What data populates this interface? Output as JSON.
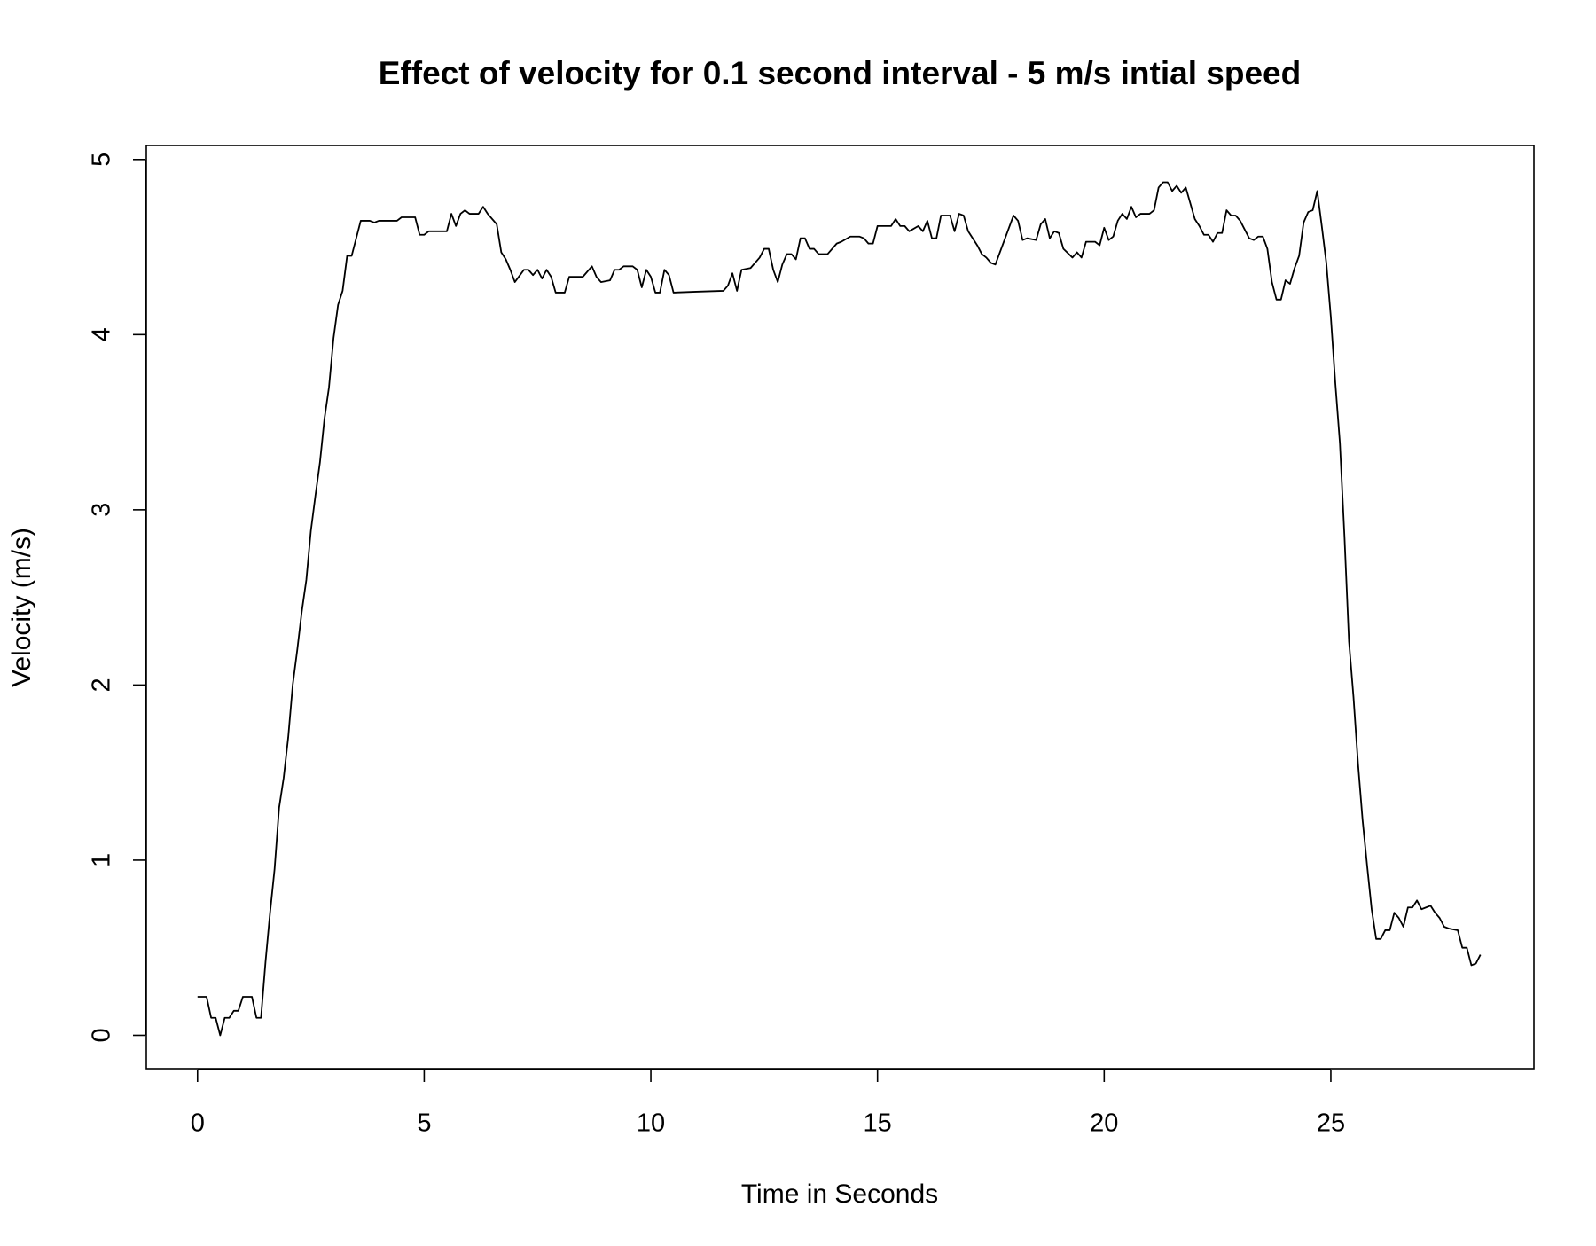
{
  "chart_data": {
    "type": "line",
    "title": "Effect of velocity for 0.1 second interval - 5 m/s intial speed",
    "x_label": "Time in Seconds",
    "y_label": "Velocity (m/s)",
    "color": "#000000",
    "grid": false,
    "xlim": [
      -1.13,
      29.48
    ],
    "ylim": [
      -0.19,
      5.08
    ],
    "xticks": [
      0,
      5,
      10,
      15,
      20,
      25
    ],
    "yticks": [
      0,
      1,
      2,
      3,
      4,
      5
    ],
    "x": [
      0,
      0.2,
      0.3,
      0.4,
      0.5,
      0.6,
      0.7,
      0.8,
      0.9,
      1.0,
      1.2,
      1.3,
      1.4,
      1.5,
      1.6,
      1.7,
      1.8,
      1.9,
      2.0,
      2.1,
      2.2,
      2.3,
      2.4,
      2.5,
      2.6,
      2.7,
      2.8,
      2.9,
      3.0,
      3.1,
      3.2,
      3.3,
      3.4,
      3.5,
      3.6,
      3.8,
      3.9,
      4.0,
      4.4,
      4.5,
      4.8,
      4.9,
      5.0,
      5.1,
      5.5,
      5.6,
      5.7,
      5.8,
      5.9,
      6.0,
      6.2,
      6.3,
      6.4,
      6.6,
      6.7,
      6.8,
      6.9,
      7.0,
      7.2,
      7.3,
      7.4,
      7.5,
      7.6,
      7.7,
      7.8,
      7.9,
      8.1,
      8.2,
      8.5,
      8.7,
      8.8,
      8.9,
      9.1,
      9.2,
      9.3,
      9.4,
      9.6,
      9.7,
      9.8,
      9.9,
      10.0,
      10.1,
      10.2,
      10.3,
      10.4,
      10.5,
      11.0,
      11.6,
      11.7,
      11.8,
      11.9,
      12.0,
      12.2,
      12.4,
      12.5,
      12.6,
      12.7,
      12.8,
      12.9,
      13.0,
      13.1,
      13.2,
      13.3,
      13.4,
      13.5,
      13.6,
      13.7,
      13.9,
      14.1,
      14.2,
      14.4,
      14.6,
      14.7,
      14.8,
      14.9,
      15.0,
      15.3,
      15.4,
      15.5,
      15.6,
      15.7,
      15.9,
      16.0,
      16.1,
      16.2,
      16.3,
      16.4,
      16.6,
      16.7,
      16.8,
      16.9,
      17.0,
      17.2,
      17.3,
      17.4,
      17.5,
      17.6,
      17.8,
      18.0,
      18.1,
      18.2,
      18.3,
      18.5,
      18.6,
      18.7,
      18.8,
      18.9,
      19.0,
      19.1,
      19.3,
      19.4,
      19.5,
      19.6,
      19.8,
      19.9,
      20.0,
      20.1,
      20.2,
      20.3,
      20.4,
      20.5,
      20.6,
      20.7,
      20.8,
      21.0,
      21.1,
      21.2,
      21.3,
      21.4,
      21.5,
      21.6,
      21.7,
      21.8,
      22.0,
      22.1,
      22.2,
      22.3,
      22.4,
      22.5,
      22.6,
      22.7,
      22.8,
      22.9,
      23.0,
      23.1,
      23.2,
      23.3,
      23.4,
      23.5,
      23.6,
      23.7,
      23.8,
      23.9,
      24.0,
      24.1,
      24.2,
      24.3,
      24.4,
      24.5,
      24.6,
      24.7,
      24.8,
      24.9,
      25.0,
      25.1,
      25.2,
      25.3,
      25.4,
      25.5,
      25.6,
      25.7,
      25.8,
      25.9,
      26.0,
      26.1,
      26.2,
      26.3,
      26.4,
      26.5,
      26.6,
      26.7,
      26.8,
      26.9,
      27.0,
      27.1,
      27.2,
      27.3,
      27.4,
      27.5,
      27.6,
      27.8,
      27.9,
      28.0,
      28.1,
      28.2,
      28.3
    ],
    "values": [
      0.22,
      0.22,
      0.1,
      0.1,
      0,
      0.1,
      0.1,
      0.14,
      0.14,
      0.22,
      0.22,
      0.1,
      0.1,
      0.42,
      0.7,
      0.95,
      1.3,
      1.47,
      1.7,
      2.0,
      2.2,
      2.42,
      2.6,
      2.88,
      3.08,
      3.27,
      3.52,
      3.7,
      3.98,
      4.17,
      4.25,
      4.45,
      4.45,
      4.55,
      4.65,
      4.65,
      4.64,
      4.65,
      4.65,
      4.67,
      4.67,
      4.57,
      4.57,
      4.59,
      4.59,
      4.69,
      4.62,
      4.69,
      4.71,
      4.69,
      4.69,
      4.73,
      4.69,
      4.63,
      4.47,
      4.43,
      4.37,
      4.3,
      4.37,
      4.37,
      4.34,
      4.37,
      4.32,
      4.37,
      4.33,
      4.24,
      4.24,
      4.33,
      4.33,
      4.39,
      4.33,
      4.3,
      4.31,
      4.37,
      4.37,
      4.39,
      4.39,
      4.37,
      4.27,
      4.37,
      4.33,
      4.24,
      4.24,
      4.37,
      4.34,
      4.24,
      4.245,
      4.25,
      4.28,
      4.35,
      4.25,
      4.37,
      4.38,
      4.44,
      4.49,
      4.49,
      4.37,
      4.3,
      4.4,
      4.46,
      4.46,
      4.43,
      4.55,
      4.55,
      4.49,
      4.49,
      4.46,
      4.46,
      4.52,
      4.53,
      4.56,
      4.56,
      4.55,
      4.52,
      4.52,
      4.62,
      4.62,
      4.66,
      4.62,
      4.62,
      4.59,
      4.62,
      4.59,
      4.65,
      4.55,
      4.55,
      4.68,
      4.68,
      4.59,
      4.69,
      4.68,
      4.59,
      4.51,
      4.46,
      4.44,
      4.41,
      4.4,
      4.54,
      4.68,
      4.65,
      4.54,
      4.55,
      4.54,
      4.63,
      4.66,
      4.55,
      4.59,
      4.58,
      4.49,
      4.44,
      4.47,
      4.44,
      4.53,
      4.53,
      4.51,
      4.61,
      4.54,
      4.56,
      4.65,
      4.69,
      4.66,
      4.73,
      4.67,
      4.69,
      4.69,
      4.71,
      4.84,
      4.87,
      4.87,
      4.82,
      4.85,
      4.81,
      4.84,
      4.66,
      4.62,
      4.57,
      4.57,
      4.53,
      4.58,
      4.58,
      4.71,
      4.68,
      4.68,
      4.65,
      4.6,
      4.55,
      4.54,
      4.56,
      4.56,
      4.49,
      4.3,
      4.2,
      4.2,
      4.31,
      4.29,
      4.38,
      4.45,
      4.64,
      4.7,
      4.71,
      4.82,
      4.62,
      4.41,
      4.1,
      3.72,
      3.38,
      2.85,
      2.25,
      1.93,
      1.55,
      1.23,
      0.97,
      0.72,
      0.55,
      0.55,
      0.6,
      0.6,
      0.7,
      0.67,
      0.62,
      0.73,
      0.73,
      0.77,
      0.72,
      0.73,
      0.74,
      0.7,
      0.67,
      0.62,
      0.61,
      0.6,
      0.5,
      0.5,
      0.4,
      0.41,
      0.46
    ]
  }
}
